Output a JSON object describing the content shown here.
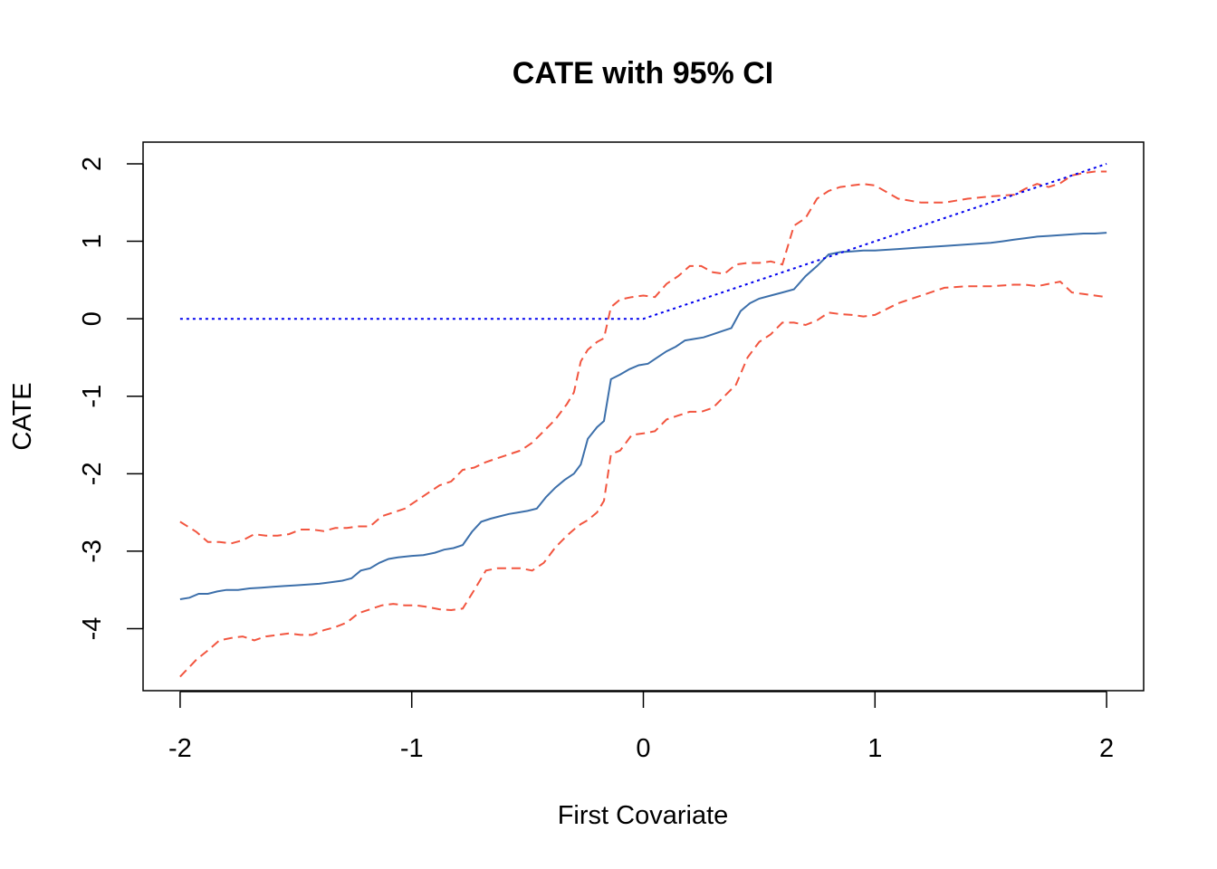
{
  "chart_data": {
    "type": "line",
    "title": "CATE with 95% CI",
    "xlabel": "First Covariate",
    "ylabel": "CATE",
    "xlim": [
      -2.16,
      2.16
    ],
    "ylim": [
      -4.8,
      2.28
    ],
    "xticks": [
      -2,
      -1,
      0,
      1,
      2
    ],
    "yticks": [
      -4,
      -3,
      -2,
      -1,
      0,
      1,
      2
    ],
    "xtick_labels": [
      "-2",
      "-1",
      "0",
      "1",
      "2"
    ],
    "ytick_labels": [
      "-4",
      "-3",
      "-2",
      "-1",
      "0",
      "1",
      "2"
    ],
    "grid": false,
    "legend": "none",
    "series": [
      {
        "style": "dashed",
        "color": "#f2553f",
        "x": [
          -2,
          -1.93,
          -1.88,
          -1.83,
          -1.78,
          -1.73,
          -1.68,
          -1.63,
          -1.58,
          -1.53,
          -1.48,
          -1.43,
          -1.38,
          -1.33,
          -1.28,
          -1.23,
          -1.18,
          -1.13,
          -1.08,
          -1.03,
          -0.98,
          -0.93,
          -0.88,
          -0.83,
          -0.78,
          -0.73,
          -0.68,
          -0.63,
          -0.58,
          -0.53,
          -0.48,
          -0.43,
          -0.38,
          -0.33,
          -0.3,
          -0.27,
          -0.24,
          -0.2,
          -0.17,
          -0.14,
          -0.1,
          -0.05,
          0,
          0.05,
          0.1,
          0.15,
          0.2,
          0.25,
          0.3,
          0.35,
          0.4,
          0.45,
          0.5,
          0.55,
          0.6,
          0.65,
          0.7,
          0.75,
          0.8,
          0.85,
          0.9,
          0.95,
          1,
          1.1,
          1.2,
          1.3,
          1.4,
          1.5,
          1.6,
          1.65,
          1.7,
          1.75,
          1.8,
          1.85,
          1.9,
          1.95,
          2
        ],
        "y": [
          -2.62,
          -2.75,
          -2.88,
          -2.88,
          -2.9,
          -2.86,
          -2.78,
          -2.8,
          -2.8,
          -2.78,
          -2.72,
          -2.72,
          -2.74,
          -2.7,
          -2.7,
          -2.68,
          -2.68,
          -2.55,
          -2.5,
          -2.45,
          -2.35,
          -2.25,
          -2.15,
          -2.1,
          -1.95,
          -1.92,
          -1.85,
          -1.8,
          -1.75,
          -1.7,
          -1.6,
          -1.45,
          -1.3,
          -1.1,
          -0.95,
          -0.55,
          -0.4,
          -0.3,
          -0.25,
          0.15,
          0.25,
          0.28,
          0.3,
          0.28,
          0.45,
          0.55,
          0.68,
          0.68,
          0.6,
          0.58,
          0.7,
          0.72,
          0.72,
          0.74,
          0.7,
          1.2,
          1.3,
          1.55,
          1.65,
          1.7,
          1.72,
          1.74,
          1.72,
          1.55,
          1.5,
          1.5,
          1.55,
          1.58,
          1.6,
          1.68,
          1.74,
          1.7,
          1.75,
          1.85,
          1.88,
          1.9,
          1.9
        ]
      },
      {
        "style": "solid",
        "color": "#3c6faa",
        "x": [
          -2,
          -1.96,
          -1.92,
          -1.88,
          -1.84,
          -1.8,
          -1.75,
          -1.7,
          -1.65,
          -1.6,
          -1.55,
          -1.5,
          -1.45,
          -1.4,
          -1.35,
          -1.3,
          -1.26,
          -1.22,
          -1.18,
          -1.14,
          -1.1,
          -1.06,
          -1.0,
          -0.95,
          -0.9,
          -0.86,
          -0.82,
          -0.78,
          -0.74,
          -0.7,
          -0.66,
          -0.62,
          -0.58,
          -0.54,
          -0.5,
          -0.46,
          -0.42,
          -0.38,
          -0.34,
          -0.3,
          -0.27,
          -0.24,
          -0.2,
          -0.17,
          -0.14,
          -0.1,
          -0.06,
          -0.02,
          0.02,
          0.06,
          0.1,
          0.14,
          0.18,
          0.22,
          0.26,
          0.3,
          0.34,
          0.38,
          0.42,
          0.46,
          0.5,
          0.55,
          0.6,
          0.65,
          0.7,
          0.75,
          0.8,
          0.85,
          0.9,
          0.95,
          1.0,
          1.1,
          1.2,
          1.3,
          1.4,
          1.5,
          1.55,
          1.6,
          1.65,
          1.7,
          1.75,
          1.8,
          1.85,
          1.9,
          1.95,
          2.0
        ],
        "y": [
          -3.62,
          -3.6,
          -3.55,
          -3.55,
          -3.52,
          -3.5,
          -3.5,
          -3.48,
          -3.47,
          -3.46,
          -3.45,
          -3.44,
          -3.43,
          -3.42,
          -3.4,
          -3.38,
          -3.35,
          -3.25,
          -3.22,
          -3.15,
          -3.1,
          -3.08,
          -3.06,
          -3.05,
          -3.02,
          -2.98,
          -2.96,
          -2.92,
          -2.75,
          -2.62,
          -2.58,
          -2.55,
          -2.52,
          -2.5,
          -2.48,
          -2.45,
          -2.3,
          -2.18,
          -2.08,
          -2.0,
          -1.88,
          -1.55,
          -1.4,
          -1.32,
          -0.78,
          -0.72,
          -0.65,
          -0.6,
          -0.58,
          -0.5,
          -0.42,
          -0.36,
          -0.28,
          -0.26,
          -0.24,
          -0.2,
          -0.16,
          -0.12,
          0.1,
          0.2,
          0.26,
          0.3,
          0.34,
          0.38,
          0.55,
          0.68,
          0.83,
          0.86,
          0.87,
          0.88,
          0.88,
          0.9,
          0.92,
          0.94,
          0.96,
          0.98,
          1.0,
          1.02,
          1.04,
          1.06,
          1.07,
          1.08,
          1.09,
          1.1,
          1.1,
          1.11
        ]
      },
      {
        "style": "dashed",
        "color": "#f2553f",
        "x": [
          -2,
          -1.93,
          -1.88,
          -1.83,
          -1.78,
          -1.73,
          -1.68,
          -1.63,
          -1.58,
          -1.53,
          -1.48,
          -1.43,
          -1.38,
          -1.33,
          -1.28,
          -1.23,
          -1.18,
          -1.13,
          -1.08,
          -1.03,
          -0.98,
          -0.93,
          -0.88,
          -0.83,
          -0.78,
          -0.73,
          -0.68,
          -0.63,
          -0.58,
          -0.53,
          -0.48,
          -0.43,
          -0.38,
          -0.33,
          -0.3,
          -0.27,
          -0.24,
          -0.2,
          -0.17,
          -0.14,
          -0.1,
          -0.05,
          0,
          0.05,
          0.1,
          0.15,
          0.2,
          0.25,
          0.3,
          0.35,
          0.4,
          0.45,
          0.5,
          0.55,
          0.6,
          0.65,
          0.7,
          0.75,
          0.8,
          0.85,
          0.9,
          0.95,
          1,
          1.1,
          1.2,
          1.3,
          1.4,
          1.5,
          1.6,
          1.65,
          1.7,
          1.75,
          1.8,
          1.85,
          1.9,
          1.95,
          2
        ],
        "y": [
          -4.62,
          -4.4,
          -4.28,
          -4.15,
          -4.12,
          -4.1,
          -4.15,
          -4.1,
          -4.08,
          -4.06,
          -4.08,
          -4.08,
          -4.02,
          -3.98,
          -3.92,
          -3.8,
          -3.75,
          -3.7,
          -3.68,
          -3.7,
          -3.7,
          -3.72,
          -3.75,
          -3.76,
          -3.74,
          -3.5,
          -3.25,
          -3.22,
          -3.22,
          -3.22,
          -3.25,
          -3.15,
          -2.95,
          -2.8,
          -2.72,
          -2.65,
          -2.6,
          -2.5,
          -2.35,
          -1.75,
          -1.7,
          -1.5,
          -1.48,
          -1.45,
          -1.3,
          -1.25,
          -1.2,
          -1.2,
          -1.15,
          -1.0,
          -0.85,
          -0.5,
          -0.3,
          -0.2,
          -0.05,
          -0.05,
          -0.08,
          -0.02,
          0.08,
          0.06,
          0.05,
          0.03,
          0.05,
          0.2,
          0.3,
          0.4,
          0.42,
          0.42,
          0.44,
          0.44,
          0.42,
          0.45,
          0.48,
          0.34,
          0.32,
          0.3,
          0.28
        ]
      },
      {
        "style": "dotted",
        "color": "#0000ee",
        "x": [
          -2,
          0,
          2
        ],
        "y": [
          0,
          0,
          2
        ]
      }
    ]
  }
}
